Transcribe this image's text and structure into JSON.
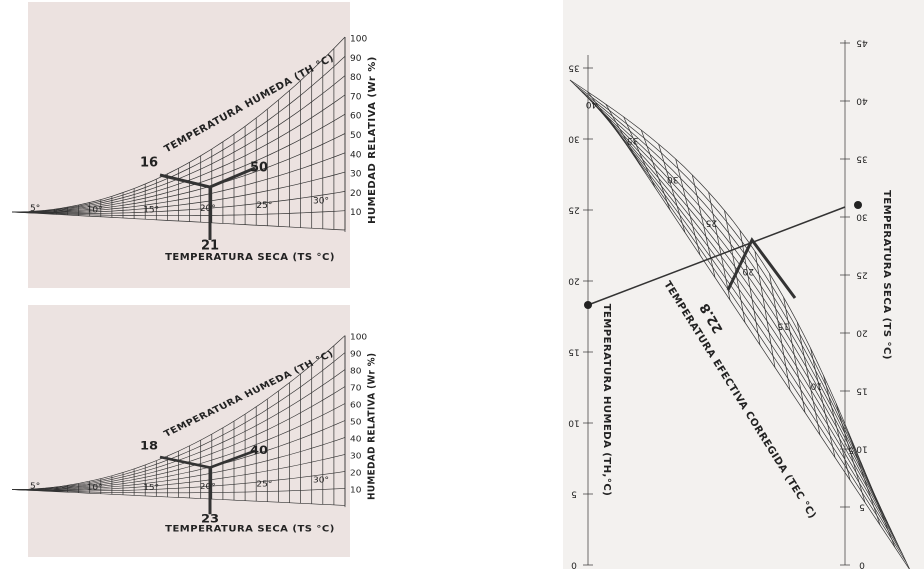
{
  "panels": [
    {
      "wet_bulb_label": "TEMPERATURA HUMEDA (TH °C)",
      "rh_label": "HUMEDAD RELATIVA (Wr %)",
      "dry_bulb_label": "TEMPERATURA SECA (TS °C)",
      "wet_bulb_value": 16,
      "dry_bulb_value": 21,
      "rh_value": 50,
      "rh_ticks": [
        10,
        20,
        30,
        40,
        50,
        60,
        70,
        80,
        90,
        100
      ],
      "temp_ticks": [
        "5°",
        "10°",
        "15°",
        "20°",
        "25°",
        "30°"
      ]
    },
    {
      "wet_bulb_label": "TEMPERATURA HUMEDA (TH °C)",
      "rh_label": "HUMEDAD RELATIVA (Wr %)",
      "dry_bulb_label": "TEMPERATURA SECA (TS °C)",
      "wet_bulb_value": 18,
      "dry_bulb_value": 23,
      "rh_value": 40,
      "rh_ticks": [
        10,
        20,
        30,
        40,
        50,
        60,
        70,
        80,
        90,
        100
      ],
      "temp_ticks": [
        "5°",
        "10°",
        "15°",
        "20°",
        "25°",
        "30°"
      ]
    }
  ],
  "nomogram": {
    "wet_bulb_label": "TEMPERATURA HUMEDA (TH,°C)",
    "dry_bulb_label": "TEMPERATURA SECA (TS °C)",
    "effective_label": "TEMPERATURA EFECTIVA CORREGIDA (TEC °C)",
    "result": "22.8",
    "left_scale": [
      0,
      5,
      10,
      15,
      20,
      25,
      30,
      35
    ],
    "right_scale": [
      0,
      5,
      10,
      15,
      20,
      25,
      30,
      35,
      40,
      45
    ],
    "curve_labels": [
      40,
      35,
      30,
      25,
      20,
      15,
      10,
      5
    ]
  }
}
